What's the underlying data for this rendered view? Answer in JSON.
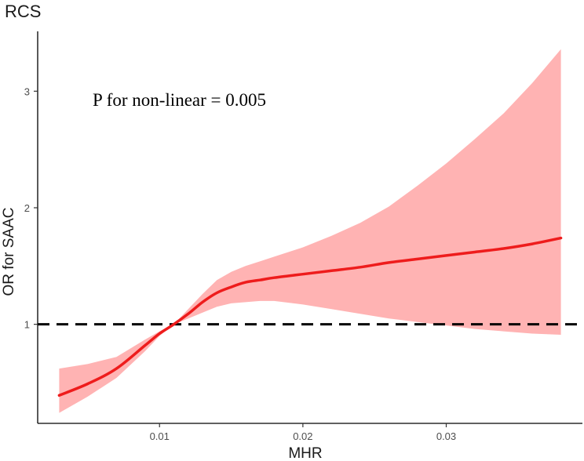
{
  "chart_data": {
    "type": "line",
    "title": "RCS",
    "xlabel": "MHR",
    "ylabel": "OR for SAAC",
    "annotation": "P for non-linear = 0.005",
    "xlim": [
      0.0015,
      0.0395
    ],
    "ylim": [
      0.15,
      3.5
    ],
    "x_ticks": [
      0.01,
      0.02,
      0.03
    ],
    "x_tick_labels": [
      "0.01",
      "0.02",
      "0.03"
    ],
    "y_ticks": [
      1,
      2,
      3
    ],
    "y_tick_labels": [
      "1",
      "2",
      "3"
    ],
    "reference_line": {
      "y": 1,
      "style": "dashed",
      "color": "#000000"
    },
    "grid": false,
    "colors": {
      "line": "#ee1c1c",
      "band": "#ffb3b3"
    },
    "series": [
      {
        "x": [
          0.003,
          0.005,
          0.007,
          0.009,
          0.01,
          0.011,
          0.012,
          0.013,
          0.014,
          0.015,
          0.016,
          0.017,
          0.018,
          0.02,
          0.022,
          0.024,
          0.026,
          0.028,
          0.03,
          0.032,
          0.034,
          0.036,
          0.038
        ],
        "y": [
          0.39,
          0.49,
          0.62,
          0.82,
          0.92,
          1.0,
          1.09,
          1.19,
          1.27,
          1.32,
          1.36,
          1.38,
          1.4,
          1.43,
          1.46,
          1.49,
          1.53,
          1.56,
          1.59,
          1.62,
          1.65,
          1.69,
          1.74
        ],
        "lower": [
          0.24,
          0.38,
          0.54,
          0.77,
          0.9,
          1.0,
          1.05,
          1.1,
          1.15,
          1.18,
          1.19,
          1.2,
          1.2,
          1.17,
          1.13,
          1.09,
          1.05,
          1.02,
          0.99,
          0.96,
          0.94,
          0.92,
          0.91
        ],
        "upper": [
          0.62,
          0.66,
          0.72,
          0.87,
          0.94,
          1.0,
          1.13,
          1.26,
          1.38,
          1.45,
          1.5,
          1.54,
          1.58,
          1.66,
          1.76,
          1.87,
          2.01,
          2.19,
          2.38,
          2.59,
          2.81,
          3.07,
          3.36
        ]
      }
    ]
  }
}
